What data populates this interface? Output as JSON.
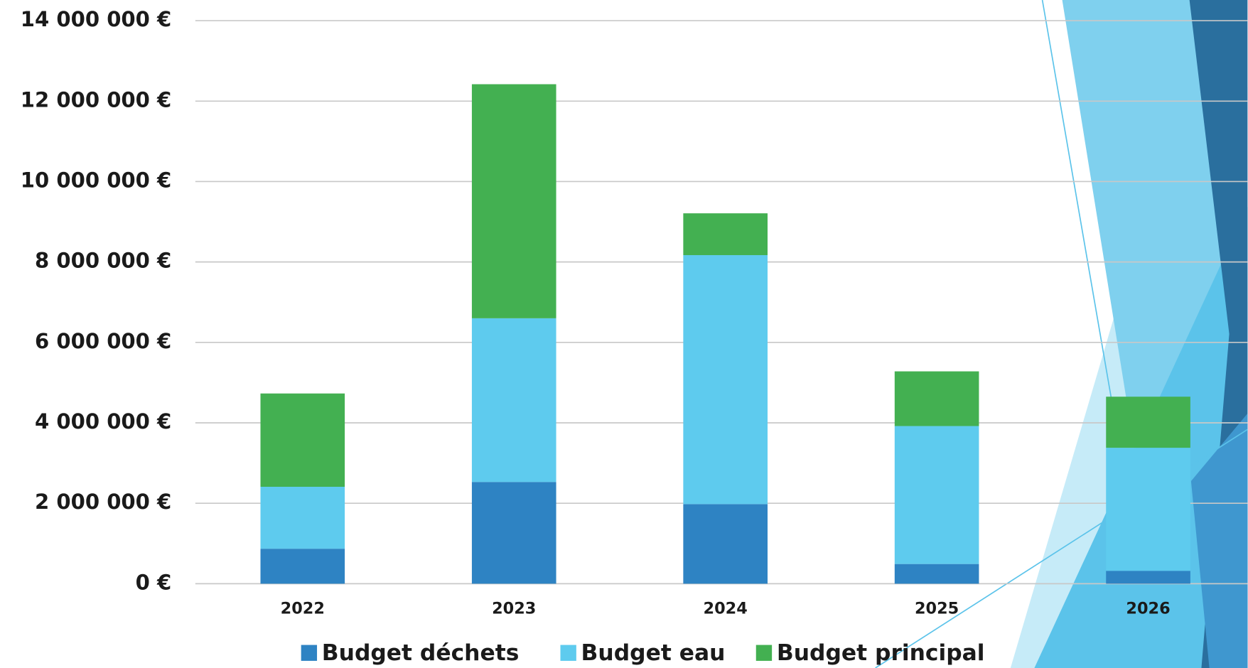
{
  "chart_data": {
    "type": "stacked-bar",
    "categories": [
      "2022",
      "2023",
      "2024",
      "2025",
      "2026"
    ],
    "series": [
      {
        "name": "Budget déchets",
        "color": "#2e83c3",
        "values": [
          870000,
          2530000,
          1980000,
          490000,
          320000
        ]
      },
      {
        "name": "Budget eau",
        "color": "#5ecbee",
        "values": [
          1540000,
          4070000,
          6190000,
          3430000,
          3060000
        ]
      },
      {
        "name": "Budget principal",
        "color": "#43b051",
        "values": [
          2320000,
          5820000,
          1040000,
          1360000,
          1270000
        ]
      }
    ],
    "ylim": [
      0,
      14000000
    ],
    "yticks": [
      {
        "value": 0,
        "label": "0 €"
      },
      {
        "value": 2000000,
        "label": "2 000 000 €"
      },
      {
        "value": 4000000,
        "label": "4 000 000 €"
      },
      {
        "value": 6000000,
        "label": "6 000 000 €"
      },
      {
        "value": 8000000,
        "label": "8 000 000 €"
      },
      {
        "value": 10000000,
        "label": "10 000 000 €"
      },
      {
        "value": 12000000,
        "label": "12 000 000 €"
      },
      {
        "value": 14000000,
        "label": "14 000 000 €"
      }
    ],
    "grid": true,
    "legend": "bottom"
  }
}
